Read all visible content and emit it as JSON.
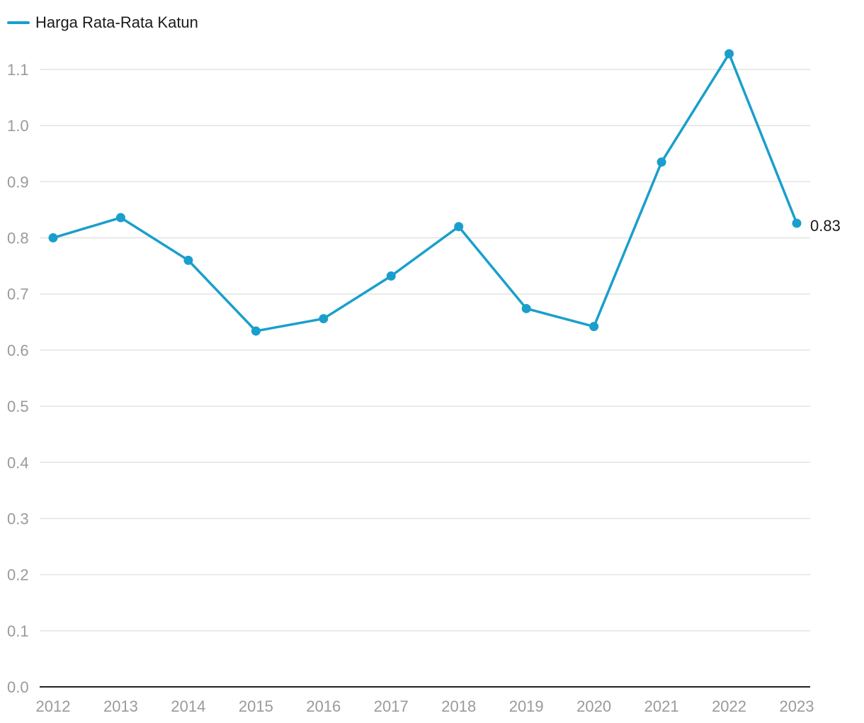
{
  "chart_data": {
    "type": "line",
    "title": "",
    "xlabel": "",
    "ylabel": "",
    "categories": [
      "2012",
      "2013",
      "2014",
      "2015",
      "2016",
      "2017",
      "2018",
      "2019",
      "2020",
      "2021",
      "2022",
      "2023"
    ],
    "series": [
      {
        "name": "Harga Rata-Rata Katun",
        "color": "#1a9fcc",
        "values": [
          0.8,
          0.836,
          0.76,
          0.634,
          0.656,
          0.732,
          0.82,
          0.674,
          0.642,
          0.935,
          1.128,
          0.826
        ]
      }
    ],
    "ylim": [
      0,
      1.1
    ],
    "yticks": [
      "0.0",
      "0.1",
      "0.2",
      "0.3",
      "0.4",
      "0.5",
      "0.6",
      "0.7",
      "0.8",
      "0.9",
      "1.0",
      "1.1"
    ],
    "grid": true,
    "legend": "top-left",
    "end_label": "0.83"
  }
}
